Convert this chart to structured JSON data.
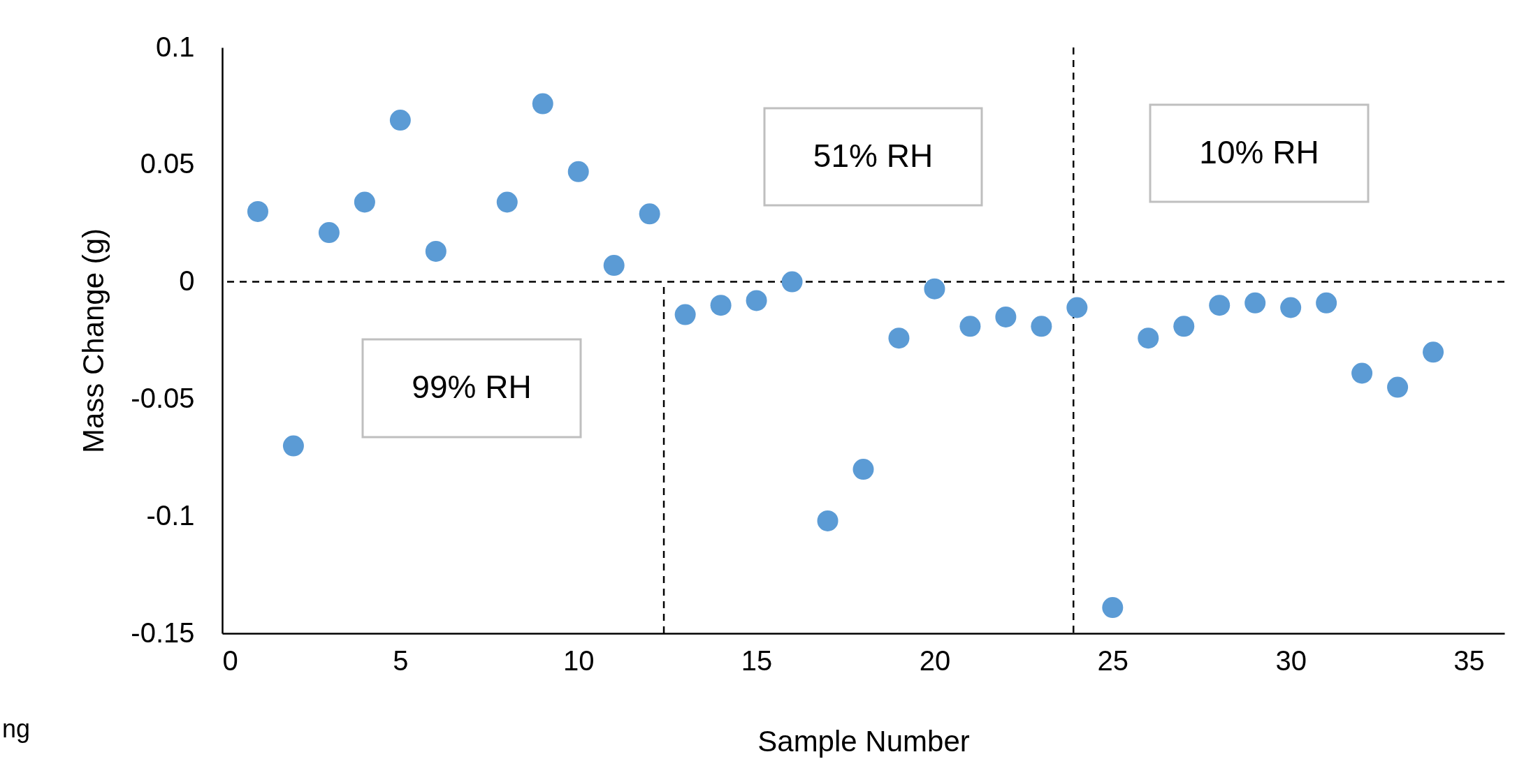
{
  "chart_data": {
    "type": "scatter",
    "xlabel": "Sample Number",
    "ylabel": "Mass Change (g)",
    "x": [
      1,
      2,
      3,
      4,
      5,
      6,
      8,
      9,
      10,
      11,
      12,
      13,
      14,
      15,
      16,
      17,
      18,
      19,
      20,
      21,
      22,
      23,
      24,
      25,
      26,
      27,
      28,
      29,
      30,
      31,
      32,
      33,
      34
    ],
    "series": [
      {
        "color": "#5b9bd5",
        "values": [
          0.03,
          -0.07,
          0.021,
          0.034,
          0.069,
          0.013,
          0.034,
          0.076,
          0.047,
          0.007,
          0.029,
          -0.014,
          -0.01,
          -0.008,
          0.0,
          -0.102,
          -0.08,
          -0.024,
          -0.003,
          -0.019,
          -0.015,
          -0.019,
          -0.011,
          -0.139,
          -0.024,
          -0.019,
          -0.01,
          -0.009,
          -0.011,
          -0.009,
          -0.039,
          -0.045,
          -0.03
        ]
      }
    ],
    "xlim": [
      0,
      36
    ],
    "xticks": [
      0,
      5,
      10,
      15,
      20,
      25,
      30,
      35
    ],
    "ylim": [
      -0.15,
      0.1
    ],
    "yticks": [
      -0.15,
      -0.1,
      -0.05,
      0,
      0.05,
      0.1
    ],
    "ref_lines": [
      {
        "axis": "x",
        "value": 12.4,
        "color": "#000000",
        "line_style": "dashed"
      },
      {
        "axis": "x",
        "value": 23.9,
        "color": "#000000",
        "line_style": "dashed"
      },
      {
        "axis": "y",
        "value": 0,
        "color": "#000000",
        "line_style": "dashed"
      }
    ],
    "annotations": [
      "99% RH",
      "51% RH",
      "10% RH",
      "ng"
    ],
    "marker": "circle",
    "grid": false
  }
}
